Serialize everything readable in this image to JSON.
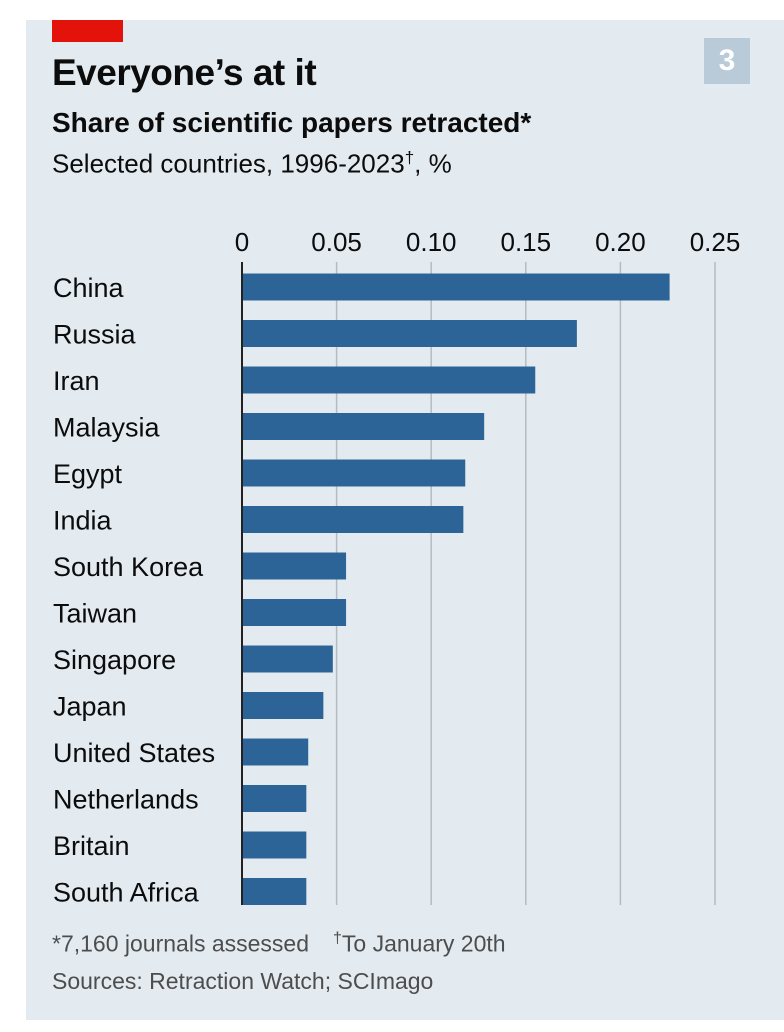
{
  "badge": "3",
  "title": "Everyone’s at it",
  "subtitle": "Share of scientific papers retracted*",
  "unit_text": "Selected countries, 1996-2023",
  "unit_dagger": "†",
  "unit_suffix": ", %",
  "footnote": {
    "star": "*7,160 journals assessed",
    "dagger": "†",
    "dagger_text": "To January 20th"
  },
  "source": "Sources: Retraction Watch; SCImago",
  "colors": {
    "bar": "#2d6498",
    "grid": "#b4bcc3",
    "axis": "#222222",
    "accent": "#e3120b"
  },
  "chart_data": {
    "type": "bar",
    "orientation": "horizontal",
    "title": "Share of scientific papers retracted*",
    "xlabel": "%",
    "xlim": [
      0,
      0.25
    ],
    "xticks": [
      0,
      0.05,
      0.1,
      0.15,
      0.2,
      0.25
    ],
    "xtick_labels": [
      "0",
      "0.05",
      "0.10",
      "0.15",
      "0.20",
      "0.25"
    ],
    "categories": [
      "China",
      "Russia",
      "Iran",
      "Malaysia",
      "Egypt",
      "India",
      "South Korea",
      "Taiwan",
      "Singapore",
      "Japan",
      "United States",
      "Netherlands",
      "Britain",
      "South Africa"
    ],
    "values": [
      0.226,
      0.177,
      0.155,
      0.128,
      0.118,
      0.117,
      0.055,
      0.055,
      0.048,
      0.043,
      0.035,
      0.034,
      0.034,
      0.034
    ]
  }
}
